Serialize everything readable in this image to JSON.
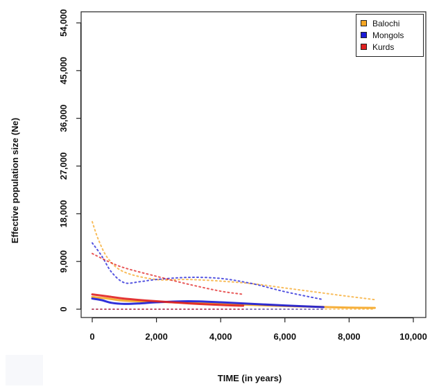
{
  "chart_data": {
    "type": "line",
    "xlabel": "TIME (in years)",
    "ylabel": "Effective population size (Ne)",
    "xlim": [
      0,
      10000
    ],
    "ylim": [
      0,
      54000
    ],
    "x_ticks": [
      0,
      2000,
      4000,
      6000,
      8000,
      10000
    ],
    "x_tick_labels": [
      "0",
      "2,000",
      "4,000",
      "6,000",
      "8,000",
      "10,000"
    ],
    "y_ticks": [
      0,
      9000,
      18000,
      27000,
      36000,
      45000,
      54000
    ],
    "y_tick_labels": [
      "0",
      "9,000",
      "18,000",
      "27,000",
      "36,000",
      "45,000",
      "54,000"
    ],
    "legend_position": "top-right",
    "grid": false,
    "series": [
      {
        "name": "Balochi",
        "color": "#f5a623",
        "median": {
          "x": [
            0,
            500,
            1000,
            2000,
            3000,
            4000,
            5000,
            6000,
            7000,
            8000,
            8800
          ],
          "y": [
            2300,
            2000,
            1600,
            1400,
            1200,
            1000,
            800,
            600,
            450,
            300,
            250
          ]
        },
        "upper": {
          "x": [
            0,
            200,
            500,
            1000,
            2000,
            3000,
            4000,
            5000,
            6000,
            7000,
            8000,
            8800
          ],
          "y": [
            16500,
            13000,
            9500,
            7000,
            5600,
            5600,
            5300,
            4800,
            4000,
            3200,
            2400,
            1800
          ]
        },
        "lower": {
          "x": [
            0,
            2000,
            4000,
            6000,
            8000,
            8800
          ],
          "y": [
            0,
            0,
            0,
            0,
            0,
            0
          ]
        }
      },
      {
        "name": "Mongols",
        "color": "#1a1ad6",
        "median": {
          "x": [
            0,
            300,
            600,
            1000,
            1500,
            2000,
            3000,
            4000,
            5000,
            6000,
            7200
          ],
          "y": [
            2000,
            1700,
            1200,
            1000,
            1100,
            1300,
            1500,
            1300,
            1000,
            700,
            400
          ]
        },
        "upper": {
          "x": [
            0,
            300,
            600,
            1000,
            1500,
            2000,
            3000,
            4000,
            5000,
            6000,
            7200
          ],
          "y": [
            12500,
            10000,
            7000,
            5000,
            5200,
            5600,
            6000,
            5800,
            4800,
            3300,
            1800
          ]
        },
        "lower": {
          "x": [
            0,
            2000,
            4000,
            6000,
            7200
          ],
          "y": [
            0,
            0,
            0,
            0,
            0
          ]
        }
      },
      {
        "name": "Kurds",
        "color": "#e02020",
        "median": {
          "x": [
            0,
            500,
            1000,
            2000,
            3000,
            4000,
            4700
          ],
          "y": [
            2800,
            2400,
            2000,
            1500,
            1100,
            800,
            650
          ]
        },
        "upper": {
          "x": [
            0,
            500,
            1000,
            2000,
            3000,
            4000,
            4700
          ],
          "y": [
            10500,
            9000,
            7800,
            6200,
            4700,
            3400,
            2800
          ]
        },
        "lower": {
          "x": [
            0,
            1000,
            2000,
            3000,
            4700
          ],
          "y": [
            0,
            0,
            0,
            0,
            0
          ]
        }
      }
    ]
  }
}
